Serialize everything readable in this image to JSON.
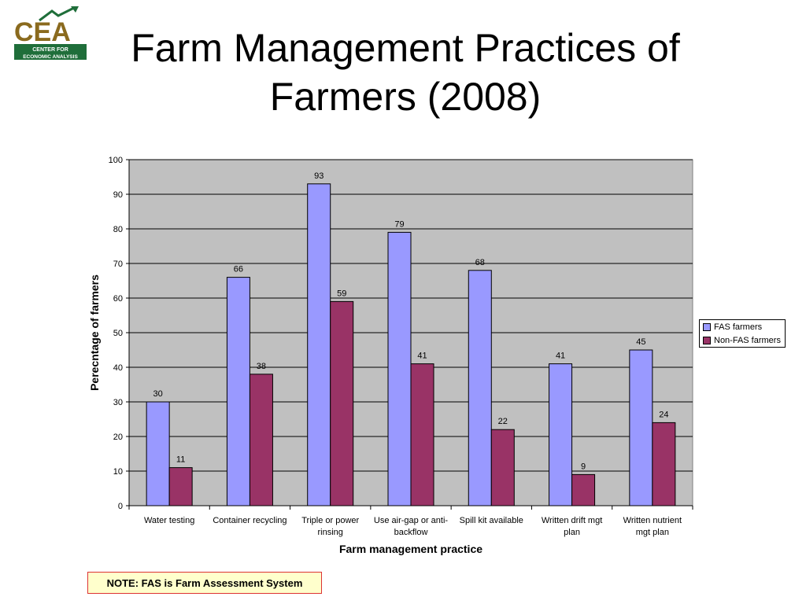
{
  "logo": {
    "letters": "CEA",
    "line1": "CENTER FOR",
    "line2": "ECONOMIC ANALYSIS",
    "colors": {
      "brown": "#8a6a1e",
      "green": "#1f6e3a"
    }
  },
  "slide": {
    "title": "Farm Management Practices of Farmers (2008)",
    "note": "NOTE: FAS is Farm Assessment System"
  },
  "chart_data": {
    "type": "bar",
    "categories": [
      "Water testing",
      "Container recycling",
      "Triple or power rinsing",
      "Use air-gap or anti-backflow",
      "Spill kit available",
      "Written drift mgt plan",
      "Written nutrient mgt plan"
    ],
    "category_lines": [
      [
        "Water testing"
      ],
      [
        "Container recycling"
      ],
      [
        "Triple or power",
        "rinsing"
      ],
      [
        "Use air-gap or anti-",
        "backflow"
      ],
      [
        "Spill kit available"
      ],
      [
        "Written drift mgt",
        "plan"
      ],
      [
        "Written nutrient",
        "mgt plan"
      ]
    ],
    "series": [
      {
        "name": "FAS farmers",
        "values": [
          30,
          66,
          93,
          79,
          68,
          41,
          45
        ],
        "color": "#9999ff"
      },
      {
        "name": "Non-FAS farmers",
        "values": [
          11,
          38,
          59,
          41,
          22,
          9,
          24
        ],
        "color": "#993366"
      }
    ],
    "xlabel": "Farm management practice",
    "ylabel": "Perecntage of farmers",
    "ylim": [
      0,
      100
    ],
    "yticks": [
      0,
      10,
      20,
      30,
      40,
      50,
      60,
      70,
      80,
      90,
      100
    ],
    "grid": true,
    "plot_background": "#c0c0c0",
    "legend_position": "right"
  }
}
